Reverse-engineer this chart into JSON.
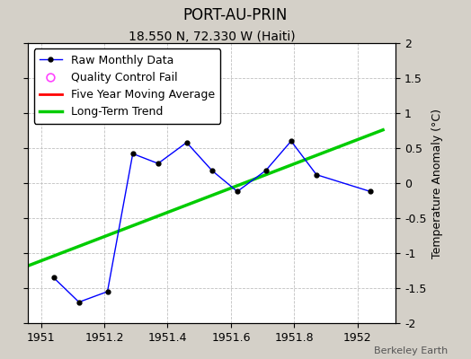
{
  "title": "PORT-AU-PRIN",
  "subtitle": "18.550 N, 72.330 W (Haiti)",
  "ylabel": "Temperature Anomaly (°C)",
  "watermark": "Berkeley Earth",
  "ylim": [
    -2,
    2
  ],
  "xlim": [
    1950.96,
    1952.12
  ],
  "xticks": [
    1951.0,
    1951.2,
    1951.4,
    1951.6,
    1951.8,
    1952.0
  ],
  "yticks": [
    -2,
    -1.5,
    -1,
    -0.5,
    0,
    0.5,
    1,
    1.5,
    2
  ],
  "raw_x": [
    1951.04,
    1951.12,
    1951.21,
    1951.29,
    1951.37,
    1951.46,
    1951.54,
    1951.62,
    1951.71,
    1951.79,
    1951.87,
    1952.04
  ],
  "raw_y": [
    -1.35,
    -1.7,
    -1.55,
    0.42,
    0.28,
    0.58,
    0.18,
    -0.12,
    0.18,
    0.6,
    0.12,
    -0.12
  ],
  "trend_x": [
    1950.96,
    1952.08
  ],
  "trend_y": [
    -1.18,
    0.76
  ],
  "raw_color": "#0000ff",
  "raw_marker_color": "#000000",
  "trend_color": "#00cc00",
  "five_year_color": "#ff0000",
  "qc_color": "#ff44ff",
  "bg_color": "#d4d0c8",
  "plot_bg_color": "#ffffff",
  "grid_color": "#c0c0c0",
  "title_fontsize": 12,
  "subtitle_fontsize": 10,
  "label_fontsize": 9,
  "tick_fontsize": 9,
  "legend_fontsize": 9
}
